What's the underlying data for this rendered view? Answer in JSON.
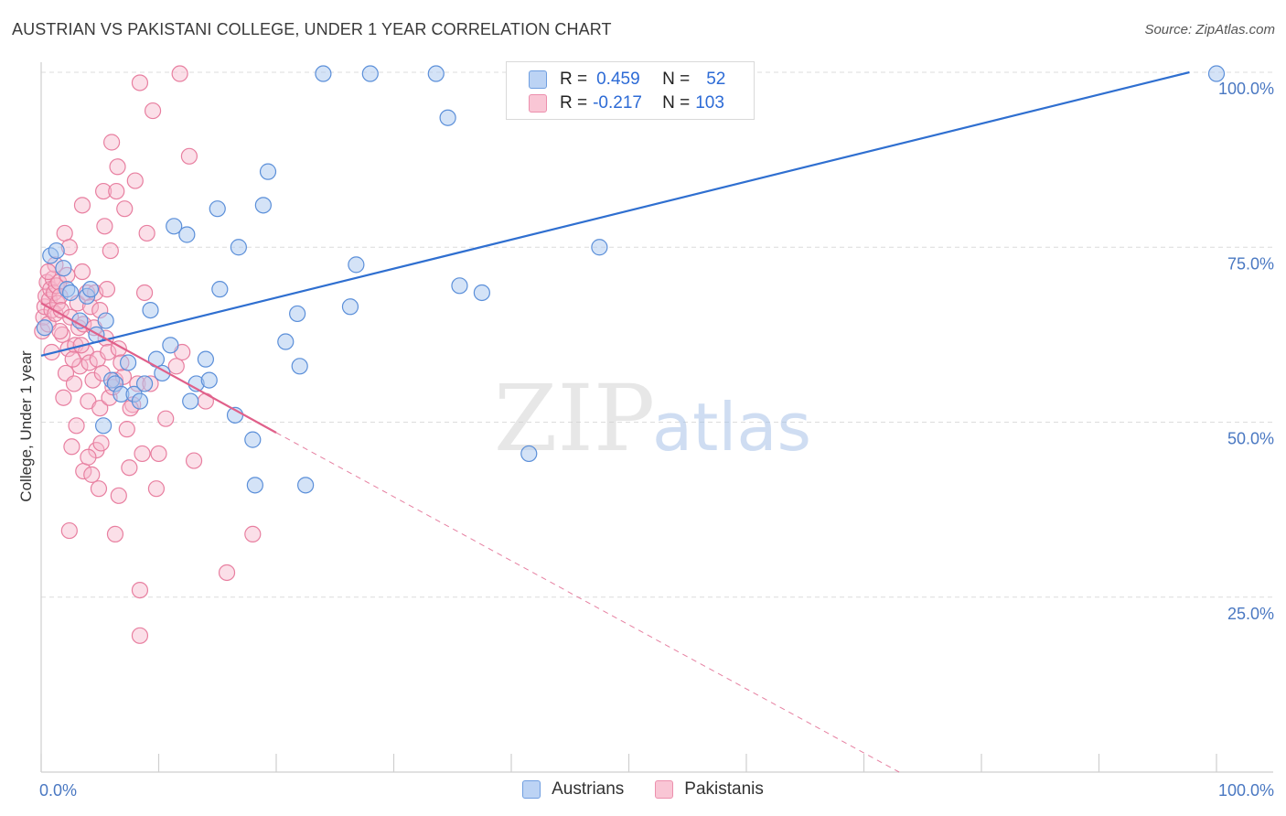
{
  "header": {
    "title": "AUSTRIAN VS PAKISTANI COLLEGE, UNDER 1 YEAR CORRELATION CHART",
    "source": "Source: ZipAtlas.com"
  },
  "watermark": {
    "zip": "ZIP",
    "atlas": "atlas"
  },
  "legend": {
    "r_label": "R =",
    "n_label": "N =",
    "rows": [
      {
        "r": "0.459",
        "n": "52"
      },
      {
        "r": "-0.217",
        "n": "103"
      }
    ]
  },
  "bottom_legend": {
    "austrians": "Austrians",
    "pakistanis": "Pakistanis"
  },
  "colors": {
    "blue_fill": "#a9c7f0",
    "blue_stroke": "#5b8fd9",
    "blue_line": "#2f6fd0",
    "pink_fill": "#f7b8cb",
    "pink_stroke": "#e87fa0",
    "pink_line": "#e0608a",
    "grid": "#dcdcdc",
    "tick_text": "#4a78c2"
  },
  "chart_data": {
    "type": "scatter",
    "title": "AUSTRIAN VS PAKISTANI COLLEGE, UNDER 1 YEAR CORRELATION CHART",
    "xlabel": "",
    "ylabel": "College, Under 1 year",
    "xlim": [
      0,
      100
    ],
    "ylim": [
      0,
      100
    ],
    "x_tick_labels": [
      "0.0%",
      "100.0%"
    ],
    "y_ticks": [
      25,
      50,
      75,
      100
    ],
    "y_tick_labels": [
      "25.0%",
      "50.0%",
      "75.0%",
      "100.0%"
    ],
    "grid": true,
    "legend_position": "top-center",
    "series": [
      {
        "name": "Austrians",
        "r": 0.459,
        "n": 52,
        "trend": {
          "x0": 0,
          "y0": 59.5,
          "x1": 100,
          "y1": 100
        },
        "points": [
          [
            0.3,
            63.5
          ],
          [
            0.8,
            73.8
          ],
          [
            1.3,
            74.5
          ],
          [
            1.9,
            72.0
          ],
          [
            2.2,
            69.0
          ],
          [
            2.5,
            68.5
          ],
          [
            3.3,
            64.5
          ],
          [
            3.9,
            68.0
          ],
          [
            4.2,
            69.0
          ],
          [
            4.7,
            62.5
          ],
          [
            5.5,
            64.5
          ],
          [
            5.3,
            49.5
          ],
          [
            6.0,
            56.0
          ],
          [
            6.3,
            55.5
          ],
          [
            6.8,
            54.0
          ],
          [
            7.4,
            58.5
          ],
          [
            7.9,
            54.0
          ],
          [
            8.4,
            53.0
          ],
          [
            8.8,
            55.5
          ],
          [
            9.3,
            66.0
          ],
          [
            9.8,
            59.0
          ],
          [
            10.3,
            57.0
          ],
          [
            11.0,
            61.0
          ],
          [
            11.3,
            78.0
          ],
          [
            12.4,
            76.8
          ],
          [
            12.7,
            53.0
          ],
          [
            13.2,
            55.5
          ],
          [
            14.0,
            59.0
          ],
          [
            14.3,
            56.0
          ],
          [
            15.0,
            80.5
          ],
          [
            15.2,
            69.0
          ],
          [
            16.5,
            51.0
          ],
          [
            16.8,
            75.0
          ],
          [
            18.0,
            47.5
          ],
          [
            18.2,
            41.0
          ],
          [
            18.9,
            81.0
          ],
          [
            19.3,
            85.8
          ],
          [
            20.8,
            61.5
          ],
          [
            21.8,
            65.5
          ],
          [
            22.0,
            58.0
          ],
          [
            22.5,
            41.0
          ],
          [
            24.0,
            99.8
          ],
          [
            26.3,
            66.5
          ],
          [
            26.8,
            72.5
          ],
          [
            28.0,
            99.8
          ],
          [
            33.6,
            99.8
          ],
          [
            34.6,
            93.5
          ],
          [
            35.6,
            69.5
          ],
          [
            37.5,
            68.5
          ],
          [
            41.5,
            45.5
          ],
          [
            47.5,
            75.0
          ],
          [
            100.0,
            99.8
          ]
        ]
      },
      {
        "name": "Pakistanis",
        "r": -0.217,
        "n": 103,
        "trend": {
          "x0": 0,
          "y0": 67,
          "x1": 20,
          "y1": 48.5,
          "dash_x1": 73,
          "dash_y1": 0
        },
        "points": [
          [
            0.1,
            63.0
          ],
          [
            0.2,
            65.0
          ],
          [
            0.3,
            66.5
          ],
          [
            0.4,
            68.0
          ],
          [
            0.5,
            70.0
          ],
          [
            0.6,
            64.0
          ],
          [
            0.7,
            67.5
          ],
          [
            0.8,
            69.0
          ],
          [
            0.9,
            66.0
          ],
          [
            1.0,
            70.5
          ],
          [
            1.1,
            68.5
          ],
          [
            1.2,
            65.5
          ],
          [
            1.3,
            69.5
          ],
          [
            1.4,
            67.0
          ],
          [
            1.5,
            70.0
          ],
          [
            1.6,
            68.0
          ],
          [
            1.7,
            66.0
          ],
          [
            1.8,
            62.5
          ],
          [
            1.9,
            53.5
          ],
          [
            2.0,
            77.0
          ],
          [
            2.1,
            57.0
          ],
          [
            2.3,
            60.5
          ],
          [
            2.4,
            75.0
          ],
          [
            2.5,
            65.0
          ],
          [
            2.6,
            46.5
          ],
          [
            2.4,
            34.5
          ],
          [
            2.8,
            55.5
          ],
          [
            2.9,
            61.0
          ],
          [
            3.0,
            49.5
          ],
          [
            3.1,
            67.0
          ],
          [
            3.2,
            63.5
          ],
          [
            3.3,
            58.0
          ],
          [
            3.5,
            71.5
          ],
          [
            3.6,
            64.0
          ],
          [
            3.5,
            81.0
          ],
          [
            3.6,
            43.0
          ],
          [
            3.8,
            60.0
          ],
          [
            3.9,
            68.5
          ],
          [
            4.0,
            53.0
          ],
          [
            4.1,
            58.5
          ],
          [
            4.2,
            66.5
          ],
          [
            4.3,
            42.5
          ],
          [
            4.4,
            56.0
          ],
          [
            4.5,
            63.5
          ],
          [
            4.6,
            68.5
          ],
          [
            4.7,
            46.0
          ],
          [
            4.8,
            59.0
          ],
          [
            4.9,
            40.5
          ],
          [
            5.0,
            52.0
          ],
          [
            5.1,
            47.0
          ],
          [
            5.2,
            57.0
          ],
          [
            5.3,
            83.0
          ],
          [
            5.4,
            78.0
          ],
          [
            5.5,
            62.0
          ],
          [
            5.6,
            69.0
          ],
          [
            5.7,
            60.0
          ],
          [
            5.8,
            53.5
          ],
          [
            5.9,
            74.5
          ],
          [
            6.0,
            90.0
          ],
          [
            6.1,
            55.0
          ],
          [
            6.3,
            56.0
          ],
          [
            6.4,
            83.0
          ],
          [
            6.5,
            86.5
          ],
          [
            6.6,
            60.5
          ],
          [
            6.3,
            34.0
          ],
          [
            6.6,
            39.5
          ],
          [
            7.0,
            56.5
          ],
          [
            7.1,
            80.5
          ],
          [
            7.3,
            49.0
          ],
          [
            7.5,
            43.5
          ],
          [
            7.8,
            52.5
          ],
          [
            8.0,
            84.5
          ],
          [
            8.2,
            55.5
          ],
          [
            8.4,
            98.5
          ],
          [
            8.4,
            26.0
          ],
          [
            8.4,
            19.5
          ],
          [
            8.6,
            45.5
          ],
          [
            8.8,
            68.5
          ],
          [
            9.0,
            77.0
          ],
          [
            9.3,
            55.5
          ],
          [
            9.5,
            94.5
          ],
          [
            9.8,
            40.5
          ],
          [
            10.0,
            45.5
          ],
          [
            11.5,
            58.0
          ],
          [
            11.8,
            99.8
          ],
          [
            12.0,
            60.0
          ],
          [
            12.6,
            88.0
          ],
          [
            13.0,
            44.5
          ],
          [
            14.0,
            53.0
          ],
          [
            15.8,
            28.5
          ],
          [
            18.0,
            34.0
          ],
          [
            1.2,
            72.5
          ],
          [
            0.9,
            60.0
          ],
          [
            2.2,
            71.0
          ],
          [
            3.4,
            61.0
          ],
          [
            4.0,
            45.0
          ],
          [
            1.6,
            63.0
          ],
          [
            2.7,
            59.0
          ],
          [
            5.0,
            66.0
          ],
          [
            6.8,
            58.5
          ],
          [
            7.6,
            52.0
          ],
          [
            10.6,
            50.5
          ],
          [
            0.6,
            71.5
          ]
        ]
      }
    ]
  }
}
